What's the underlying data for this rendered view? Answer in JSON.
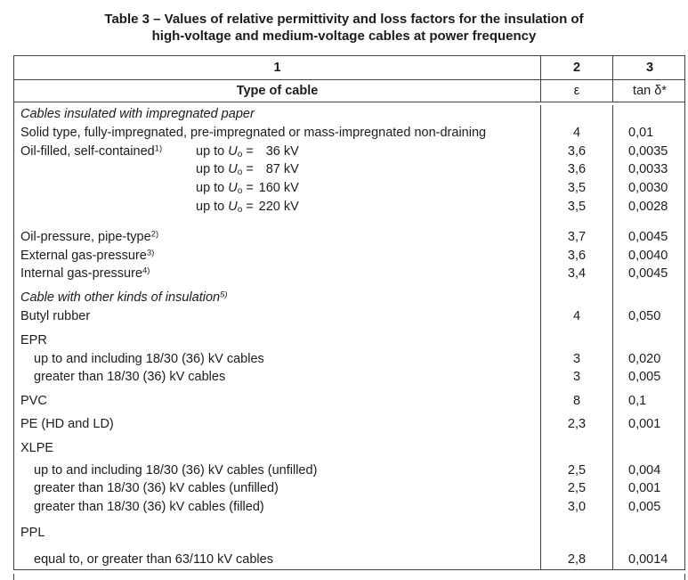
{
  "title": {
    "line1": "Table 3 – Values of relative permittivity and loss factors for the insulation of",
    "line2": "high-voltage and medium-voltage cables at power frequency"
  },
  "colors": {
    "border": "#424242",
    "text": "#1c1c1c",
    "background": "#ffffff"
  },
  "table": {
    "header": {
      "col1_num": "1",
      "col2_num": "2",
      "col3_num": "3",
      "col1_label": "Type of cable",
      "col2_label": "ε",
      "col3_label": "tan δ*"
    },
    "rows": [
      {
        "kind": "item",
        "style": "italic",
        "text": "Cables insulated with impregnated paper",
        "eps": "",
        "tan": ""
      },
      {
        "kind": "item",
        "text": "Solid type, fully-impregnated, pre-impregnated or mass-impregnated non-draining",
        "eps": "4",
        "tan": "0,01"
      },
      {
        "kind": "item",
        "text": "Oil-filled, self-contained",
        "sup": "1)",
        "volt": {
          "pre": "up to",
          "u": "U",
          "usub": "o",
          "eq": "=",
          "num": "36",
          "unit": "kV"
        },
        "eps": "3,6",
        "tan": "0,0035"
      },
      {
        "kind": "item",
        "volt": {
          "pre": "up to",
          "u": "U",
          "usub": "o",
          "eq": "=",
          "num": "87",
          "unit": "kV"
        },
        "eps": "3,6",
        "tan": "0,0033"
      },
      {
        "kind": "item",
        "volt": {
          "pre": "up to",
          "u": "U",
          "usub": "o",
          "eq": "=",
          "num": "160",
          "unit": "kV"
        },
        "eps": "3,5",
        "tan": "0,0030"
      },
      {
        "kind": "item",
        "volt": {
          "pre": "up to",
          "u": "U",
          "usub": "o",
          "eq": "=",
          "num": "220",
          "unit": "kV"
        },
        "eps": "3,5",
        "tan": "0,0028"
      },
      {
        "kind": "spacer",
        "h": 13
      },
      {
        "kind": "item",
        "text": "Oil-pressure, pipe-type",
        "sup": "2)",
        "eps": "3,7",
        "tan": "0,0045"
      },
      {
        "kind": "item",
        "text": "External gas-pressure",
        "sup": "3)",
        "eps": "3,6",
        "tan": "0,0040"
      },
      {
        "kind": "item",
        "text": "Internal gas-pressure",
        "sup": "4)",
        "eps": "3,4",
        "tan": "0,0045"
      },
      {
        "kind": "spacer",
        "h": 6
      },
      {
        "kind": "item",
        "style": "italic",
        "text": "Cable with other kinds of insulation",
        "sup": "5)",
        "eps": "",
        "tan": ""
      },
      {
        "kind": "item",
        "text": "Butyl rubber",
        "eps": "4",
        "tan": "0,050"
      },
      {
        "kind": "spacer",
        "h": 6
      },
      {
        "kind": "item",
        "text": "EPR",
        "eps": "",
        "tan": ""
      },
      {
        "kind": "item",
        "indent": true,
        "text": "up to and including 18/30 (36) kV cables",
        "eps": "3",
        "tan": "0,020"
      },
      {
        "kind": "item",
        "indent": true,
        "text": "greater than 18/30 (36) kV cables",
        "eps": "3",
        "tan": "0,005"
      },
      {
        "kind": "spacer",
        "h": 6
      },
      {
        "kind": "item",
        "text": "PVC",
        "eps": "8",
        "tan": "0,1"
      },
      {
        "kind": "spacer",
        "h": 5
      },
      {
        "kind": "item",
        "text": "PE (HD and LD)",
        "eps": "2,3",
        "tan": "0,001"
      },
      {
        "kind": "spacer",
        "h": 6
      },
      {
        "kind": "item",
        "text": "XLPE",
        "eps": "",
        "tan": ""
      },
      {
        "kind": "spacer",
        "h": 4
      },
      {
        "kind": "item",
        "indent": true,
        "text": "up to and including 18/30 (36) kV cables (unfilled)",
        "eps": "2,5",
        "tan": "0,004"
      },
      {
        "kind": "item",
        "indent": true,
        "text": "greater than 18/30 (36) kV cables (unfilled)",
        "eps": "2,5",
        "tan": "0,001"
      },
      {
        "kind": "item",
        "indent": true,
        "text": "greater than 18/30 (36) kV cables (filled)",
        "eps": "3,0",
        "tan": "0,005"
      },
      {
        "kind": "spacer",
        "h": 8
      },
      {
        "kind": "item",
        "text": "PPL",
        "eps": "",
        "tan": ""
      },
      {
        "kind": "spacer",
        "h": 9
      },
      {
        "kind": "item",
        "indent": true,
        "text": "equal to, or greater than 63/110 kV cables",
        "eps": "2,8",
        "tan": "0,0014"
      }
    ]
  }
}
